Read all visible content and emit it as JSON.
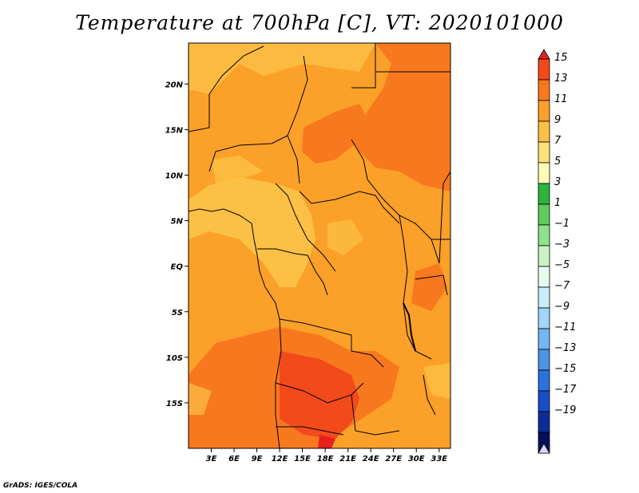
{
  "title": "Temperature at 700hPa [C], VT: 2020101000",
  "credit": "GrADS: IGES/COLA",
  "map": {
    "lat_labels": [
      "20N",
      "15N",
      "10N",
      "5N",
      "EQ",
      "5S",
      "10S",
      "15S"
    ],
    "lon_labels": [
      "3E",
      "6E",
      "9E",
      "12E",
      "15E",
      "18E",
      "21E",
      "24E",
      "27E",
      "30E",
      "33E"
    ],
    "lon_range": [
      0,
      34.5
    ],
    "lat_range": [
      -20,
      24.5
    ],
    "dominant_field_range_C": [
      9,
      15
    ]
  },
  "colorbar": {
    "labels": [
      "15",
      "13",
      "11",
      "9",
      "7",
      "5",
      "3",
      "1",
      "−1",
      "−3",
      "−5",
      "−7",
      "−9",
      "−11",
      "−13",
      "−15",
      "−17",
      "−19"
    ],
    "colors": [
      "#e8201c",
      "#f24a1a",
      "#f8781e",
      "#fba028",
      "#fcc044",
      "#fde07a",
      "#fefcb8",
      "#2cb43c",
      "#5ccc5c",
      "#8ee28a",
      "#c8f4c4",
      "#e8fcf0",
      "#c8eefc",
      "#a0d6f8",
      "#74b6f0",
      "#4c94e6",
      "#2c72dc",
      "#1a4cc8",
      "#0c2c9a",
      "#08105a"
    ],
    "under_color": "#d8dcf8"
  }
}
